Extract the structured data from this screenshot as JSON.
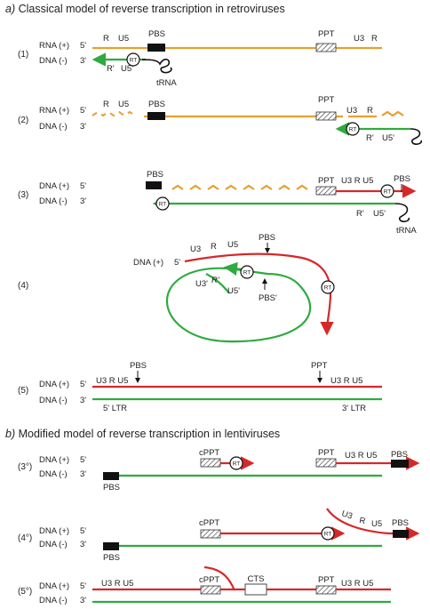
{
  "header_a": {
    "letter": "a)",
    "text": "Classical model of reverse transcription in retroviruses"
  },
  "header_b": {
    "letter": "b)",
    "text": "Modified model of reverse transcription in lentiviruses"
  },
  "steps": {
    "s1": "(1)",
    "s2": "(2)",
    "s3": "(3)",
    "s4": "(4)",
    "s5": "(5)",
    "s3b": "(3°)",
    "s4b": "(4°)",
    "s5b": "(5°)"
  },
  "strands": {
    "rna_plus": "RNA (+)",
    "dna_minus": "DNA (-)",
    "dna_plus": "DNA (+)",
    "five": "5'",
    "three": "3'"
  },
  "labels": {
    "R": "R",
    "U5": "U5",
    "U3": "U3",
    "Rp": "R'",
    "U5p": "U5'",
    "U3p": "U3'",
    "PBS": "PBS",
    "PBSp": "PBS'",
    "PPT": "PPT",
    "cPPT": "cPPT",
    "CTS": "CTS",
    "tRNA": "tRNA",
    "RT": "RT",
    "ltr5": "5' LTR",
    "ltr3": "3' LTR",
    "R_U5": "R  U5",
    "U3_R": "U3  R",
    "U3_R_U5": "U3  R  U5",
    "U3_R_U5_tight": "U3 R U5"
  },
  "colors": {
    "rna": "#E8A030",
    "minus_dna": "#2FAA3F",
    "plus_dna": "#D62828"
  }
}
